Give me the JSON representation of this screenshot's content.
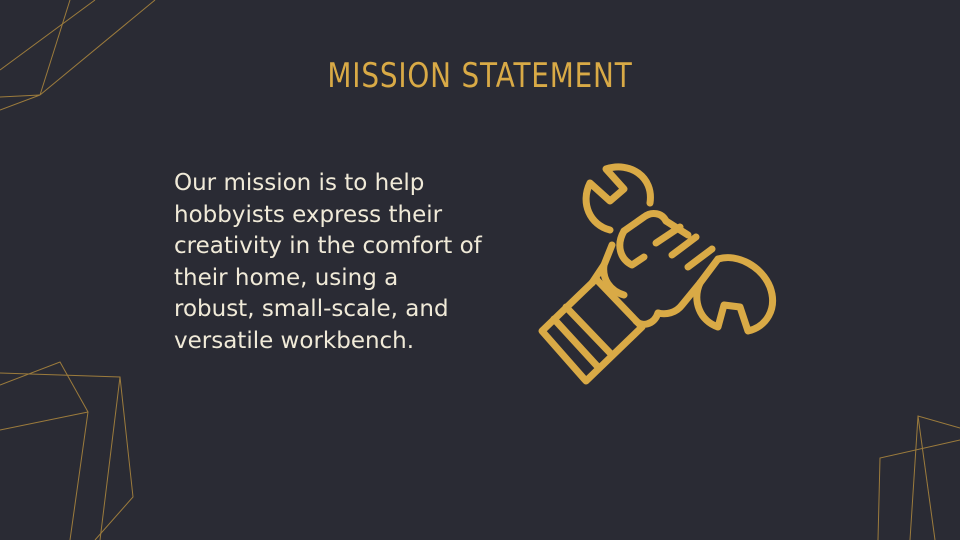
{
  "slide": {
    "title": "MISSION STATEMENT",
    "body_lines": [
      "Our mission is to help",
      "hobbyists express their",
      "creativity in the comfort of",
      "their home, using a",
      "robust, small-scale, and",
      "versatile workbench."
    ],
    "icon": "hand-holding-wrench-icon",
    "colors": {
      "background": "#2a2b34",
      "accent": "#d9aa46",
      "text": "#f0ead8"
    }
  }
}
